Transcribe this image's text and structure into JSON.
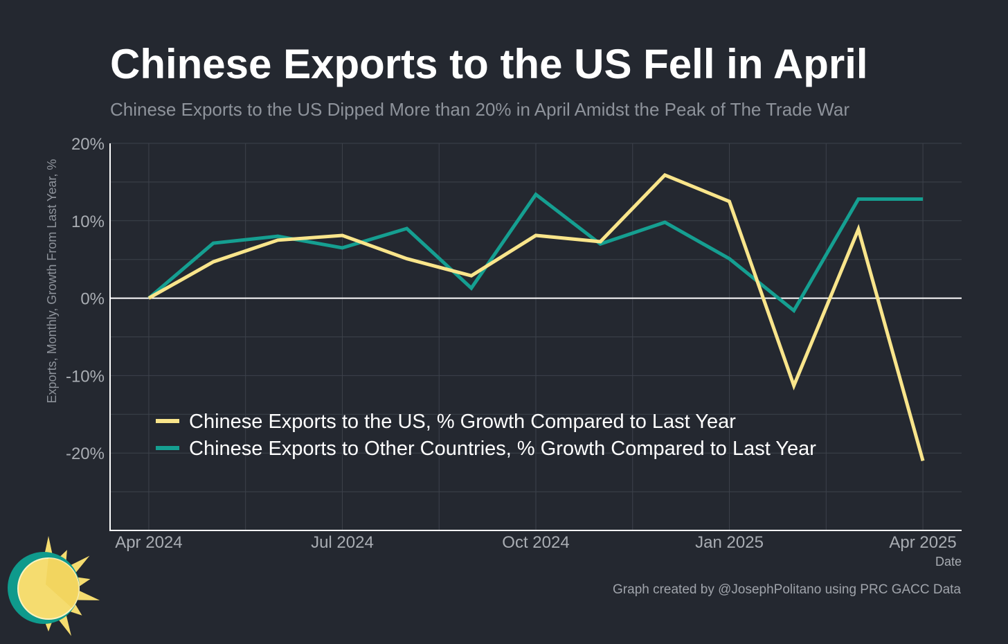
{
  "title": "Chinese Exports to the US Fell in April",
  "subtitle": "Chinese Exports to the US Dipped More than 20% in April Amidst the Peak of The Trade War",
  "credit": "Graph created by @JosephPolitano using PRC GACC Data",
  "colors": {
    "background": "#242830",
    "us_series": "#f9e58b",
    "other_series": "#159f91",
    "grid": "#3d424b",
    "axis": "#ffffff",
    "tick_text": "#a9adb3",
    "logo_sun": "#f5dc6f",
    "logo_ring": "#0f9a8c"
  },
  "chart_data": {
    "type": "line",
    "x": [
      "2024-04",
      "2024-05",
      "2024-06",
      "2024-07",
      "2024-08",
      "2024-09",
      "2024-10",
      "2024-11",
      "2024-12",
      "2025-01",
      "2025-02",
      "2025-03",
      "2025-04"
    ],
    "series": [
      {
        "name": "Chinese Exports to the US, % Growth Compared to Last Year",
        "color": "#f9e58b",
        "values": [
          0,
          4.7,
          7.5,
          8.1,
          5.1,
          2.9,
          8.1,
          7.3,
          15.9,
          12.5,
          -11.3,
          8.9,
          -21.0
        ]
      },
      {
        "name": "Chinese Exports to Other Countries, % Growth Compared to Last Year",
        "color": "#159f91",
        "values": [
          0,
          7.1,
          8.0,
          6.5,
          9.0,
          1.3,
          13.4,
          7.0,
          9.8,
          5.1,
          -1.6,
          12.8,
          12.8
        ]
      }
    ],
    "x_ticks": [
      {
        "label": "Apr 2024",
        "index": 0
      },
      {
        "label": "Jul 2024",
        "index": 3
      },
      {
        "label": "Oct 2024",
        "index": 6
      },
      {
        "label": "Jan 2025",
        "index": 9
      },
      {
        "label": "Apr 2025",
        "index": 12
      }
    ],
    "y_ticks": [
      {
        "label": "20%",
        "value": 20
      },
      {
        "label": "10%",
        "value": 10
      },
      {
        "label": "0%",
        "value": 0
      },
      {
        "label": "-10%",
        "value": -10
      },
      {
        "label": "-20%",
        "value": -20
      }
    ],
    "xlabel": "Date",
    "ylabel": "Exports, Monthly, Growth From Last Year, %",
    "ylim": [
      -30,
      20
    ],
    "xlim": [
      -0.6,
      12.6
    ],
    "grid": true,
    "legend_position": "bottom-left"
  }
}
